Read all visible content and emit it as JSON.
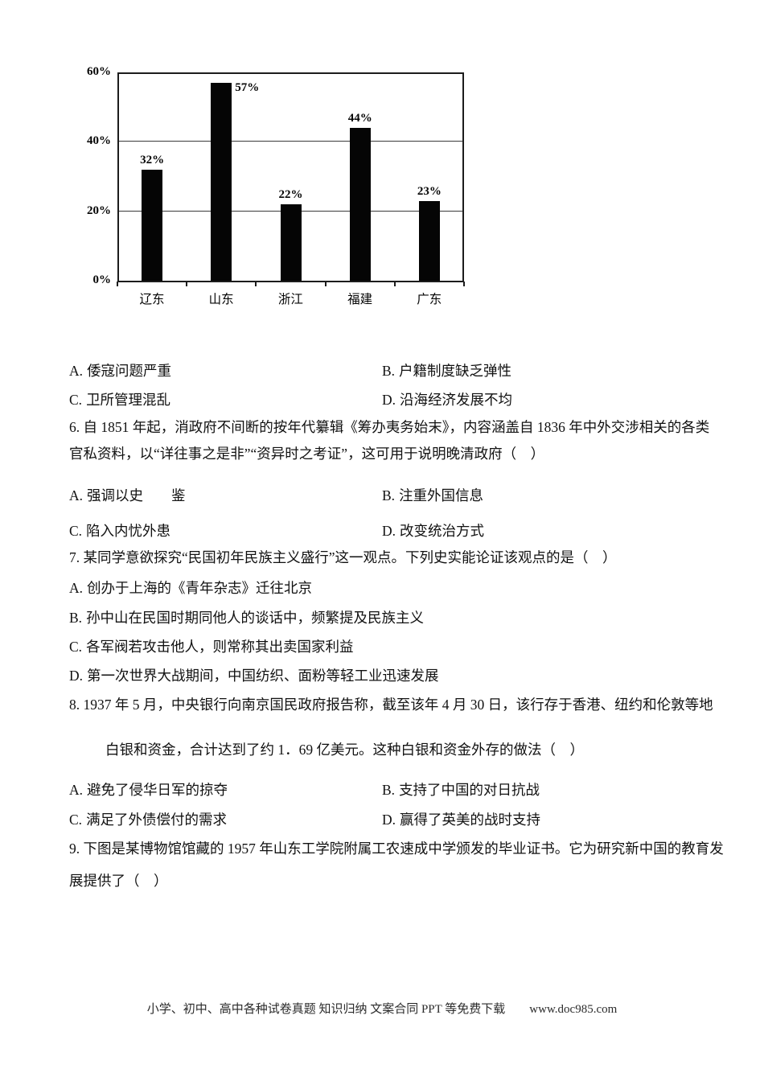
{
  "chart_data": {
    "type": "bar",
    "title": "",
    "xlabel": "",
    "ylabel": "",
    "categories": [
      "辽东",
      "山东",
      "浙江",
      "福建",
      "广东"
    ],
    "values": [
      32,
      57,
      22,
      44,
      23
    ],
    "value_labels": [
      "32%",
      "57%",
      "22%",
      "44%",
      "23%"
    ],
    "value_label_placement": [
      "above",
      "right",
      "above",
      "above",
      "above"
    ],
    "ylim": [
      0,
      60
    ],
    "yticks": [
      0,
      20,
      40,
      60
    ],
    "ytick_labels": [
      "0%",
      "20%",
      "40%",
      "60%"
    ],
    "gridlines": [
      20,
      40
    ],
    "grid_on": true,
    "legend": "none",
    "bar_color": "#050505"
  },
  "q5": {
    "options": [
      {
        "label": "A.",
        "text": "倭寇问题严重"
      },
      {
        "label": "B.",
        "text": "户籍制度缺乏弹性"
      },
      {
        "label": "C.",
        "text": "卫所管理混乱"
      },
      {
        "label": "D.",
        "text": "沿海经济发展不均"
      }
    ]
  },
  "q6": {
    "line1": "6. 自 1851 年起，消政府不间断的按年代纂辑《筹办夷务始末》，内容涵盖自 1836 年中外交涉相关的各类",
    "line2": "官私资料，以“详往事之是非”“资异时之考证”，这可用于说明晚清政府（　）",
    "options": [
      {
        "label": "A.",
        "text": "强调以史　　鉴"
      },
      {
        "label": "B.",
        "text": "注重外国信息"
      },
      {
        "label": "C.",
        "text": "陷入内忧外患"
      },
      {
        "label": "D.",
        "text": "改变统治方式"
      }
    ]
  },
  "q7": {
    "line1": "7. 某同学意欲探究“民国初年民族主义盛行”这一观点。下列史实能论证该观点的是（　）",
    "options": [
      {
        "label": "A.",
        "text": "创办于上海的《青年杂志》迁往北京"
      },
      {
        "label": "B.",
        "text": "孙中山在民国时期同他人的谈话中，频繁提及民族主义"
      },
      {
        "label": "C.",
        "text": "各军阀若攻击他人，则常称其出卖国家利益"
      },
      {
        "label": "D.",
        "text": "第一次世界大战期间，中国纺织、面粉等轻工业迅速发展"
      }
    ]
  },
  "q8": {
    "line1": "8. 1937 年 5 月，中央银行向南京国民政府报告称，截至该年 4 月 30 日，该行存于香港、纽约和伦敦等地",
    "line2": "白银和资金，合计达到了约 1．69 亿美元。这种白银和资金外存的做法（　）",
    "options": [
      {
        "label": "A.",
        "text": "避免了侵华日军的掠夺"
      },
      {
        "label": "B.",
        "text": "支持了中国的对日抗战"
      },
      {
        "label": "C.",
        "text": "满足了外债偿付的需求"
      },
      {
        "label": "D.",
        "text": "赢得了英美的战时支持"
      }
    ]
  },
  "q9": {
    "line1": "9. 下图是某博物馆馆藏的 1957 年山东工学院附属工农速成中学颁发的毕业证书。它为研究新中国的教育发",
    "line2": "展提供了（　）"
  },
  "footer": {
    "text": "小学、初中、高中各种试卷真题  知识归纳  文案合同  PPT 等免费下载",
    "link": "www.doc985.com"
  }
}
